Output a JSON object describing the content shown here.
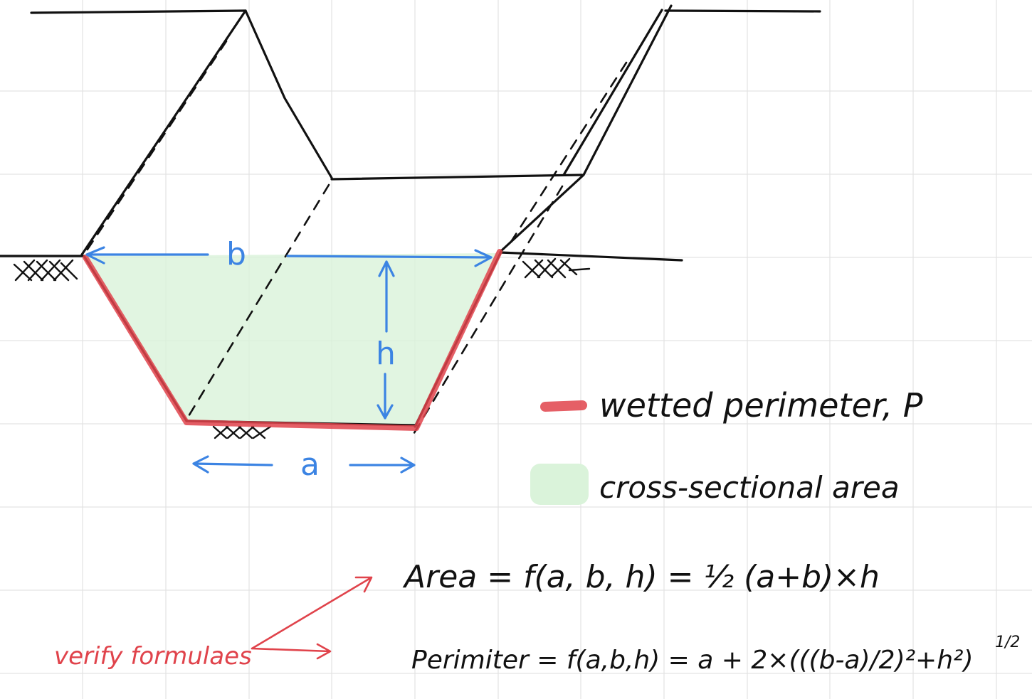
{
  "dimensions": {
    "bottom_width": "a",
    "top_width": "b",
    "depth": "h"
  },
  "legend": {
    "perimeter_label": "wetted perimeter, P",
    "area_label": "cross-sectional area",
    "perimeter_color": "#e0434b",
    "area_color": "#daf3da"
  },
  "formulas": {
    "area": "Area = f(a, b, h) = ½ (a+b)×h",
    "perimeter_main": "Perimiter = f(a,b,h) = a + 2×(((b-a)/2)²+h²)",
    "perimeter_exponent": "1/2"
  },
  "note": {
    "text": "verify formulaes",
    "color": "#e0434b"
  },
  "colors": {
    "ink": "#111111",
    "dimension": "#3c84e3",
    "grid": "#e3e3e3"
  }
}
